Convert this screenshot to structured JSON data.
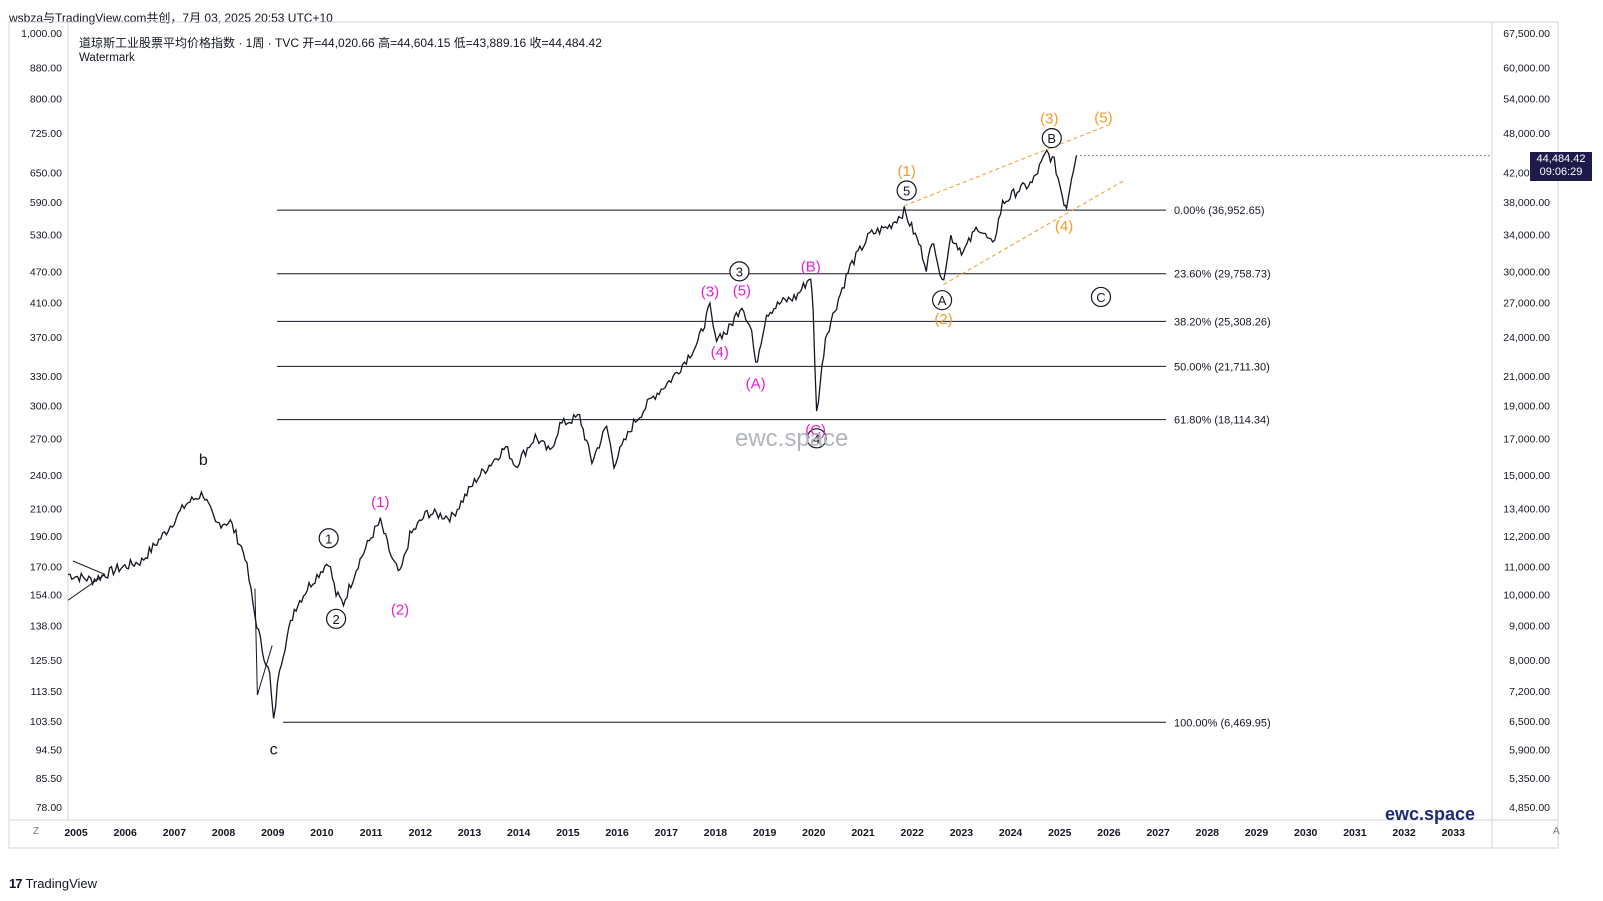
{
  "header": {
    "text": "wsbza与TradingView.com共创，7月 03, 2025 20:53 UTC+10"
  },
  "legend": {
    "title": "道琼斯工业股票平均价格指数 · 1周 · TVC   开=44,020.66   高=44,604.15   低=43,889.16   收=44,484.42",
    "watermark": "Watermark"
  },
  "price_tag": {
    "value": "44,484.42",
    "countdown": "09:06:29"
  },
  "brand": "ewc.space",
  "center_watermark": "ewc.space",
  "footer": {
    "logo": "17",
    "name": "TradingView"
  },
  "controls": {
    "left": "Z",
    "right": "A"
  },
  "colors": {
    "line": "#131722",
    "magenta": "#e91ed4",
    "orange": "#f59a23",
    "fib": "#131722",
    "axis_text": "#131722"
  },
  "chart_data": {
    "type": "line",
    "title": "道琼斯工业股票平均价格指数",
    "symbol": "TVC",
    "interval": "1周",
    "ohlc": {
      "open": 44020.66,
      "high": 44604.15,
      "low": 43889.16,
      "close": 44484.42
    },
    "scale": "log",
    "left_axis": {
      "ticks": [
        "1,000.00",
        "880.00",
        "800.00",
        "725.00",
        "650.00",
        "590.00",
        "530.00",
        "470.00",
        "410.00",
        "370.00",
        "330.00",
        "300.00",
        "270.00",
        "240.00",
        "210.00",
        "190.00",
        "170.00",
        "154.00",
        "138.00",
        "125.50",
        "113.50",
        "103.50",
        "94.50",
        "85.50",
        "78.00"
      ]
    },
    "right_axis": {
      "ticks": [
        "67,500.00",
        "60,000.00",
        "54,000.00",
        "48,000.00",
        "42,000.00",
        "38,000.00",
        "34,000.00",
        "30,000.00",
        "27,000.00",
        "24,000.00",
        "21,000.00",
        "19,000.00",
        "17,000.00",
        "15,000.00",
        "13,400.00",
        "12,200.00",
        "11,000.00",
        "10,000.00",
        "9,000.00",
        "8,000.00",
        "7,200.00",
        "6,500.00",
        "5,900.00",
        "5,350.00",
        "4,850.00"
      ],
      "values": [
        67500,
        60000,
        54000,
        48000,
        42000,
        38000,
        34000,
        30000,
        27000,
        24000,
        21000,
        19000,
        17000,
        15000,
        13400,
        12200,
        11000,
        10000,
        9000,
        8000,
        7200,
        6500,
        5900,
        5350,
        4850
      ]
    },
    "x_axis": {
      "ticks": [
        "2005",
        "2006",
        "2007",
        "2008",
        "2009",
        "2010",
        "2011",
        "2012",
        "2013",
        "2014",
        "2015",
        "2016",
        "2017",
        "2018",
        "2019",
        "2020",
        "2021",
        "2022",
        "2023",
        "2024",
        "2025",
        "2026",
        "2027",
        "2028",
        "2029",
        "2030",
        "2031",
        "2032",
        "2033"
      ],
      "years": [
        2005,
        2006,
        2007,
        2008,
        2009,
        2010,
        2011,
        2012,
        2013,
        2014,
        2015,
        2016,
        2017,
        2018,
        2019,
        2020,
        2021,
        2022,
        2023,
        2024,
        2025,
        2026,
        2027,
        2028,
        2029,
        2030,
        2031,
        2032,
        2033
      ]
    },
    "series": [
      {
        "points": [
          [
            2005.0,
            10700
          ],
          [
            2005.5,
            10500
          ],
          [
            2006.0,
            10900
          ],
          [
            2006.5,
            11200
          ],
          [
            2007.0,
            12400
          ],
          [
            2007.4,
            13600
          ],
          [
            2007.75,
            14100
          ],
          [
            2008.0,
            12700
          ],
          [
            2008.3,
            12800
          ],
          [
            2008.6,
            11400
          ],
          [
            2008.8,
            9300
          ],
          [
            2008.95,
            8300
          ],
          [
            2009.1,
            7600
          ],
          [
            2009.18,
            6470
          ],
          [
            2009.3,
            7800
          ],
          [
            2009.6,
            9500
          ],
          [
            2009.9,
            10300
          ],
          [
            2010.3,
            11200
          ],
          [
            2010.45,
            10000
          ],
          [
            2010.6,
            9700
          ],
          [
            2010.9,
            11100
          ],
          [
            2011.2,
            12300
          ],
          [
            2011.35,
            12800
          ],
          [
            2011.6,
            11200
          ],
          [
            2011.75,
            10700
          ],
          [
            2011.95,
            12200
          ],
          [
            2012.3,
            13200
          ],
          [
            2012.8,
            13000
          ],
          [
            2013.3,
            14800
          ],
          [
            2013.9,
            16500
          ],
          [
            2014.1,
            15500
          ],
          [
            2014.5,
            17100
          ],
          [
            2014.8,
            16200
          ],
          [
            2015.0,
            17800
          ],
          [
            2015.4,
            18300
          ],
          [
            2015.65,
            15700
          ],
          [
            2015.95,
            17700
          ],
          [
            2016.1,
            15600
          ],
          [
            2016.5,
            17900
          ],
          [
            2016.9,
            19600
          ],
          [
            2017.3,
            20900
          ],
          [
            2017.8,
            23500
          ],
          [
            2018.05,
            26600
          ],
          [
            2018.15,
            24000
          ],
          [
            2018.4,
            24400
          ],
          [
            2018.7,
            26800
          ],
          [
            2018.9,
            24500
          ],
          [
            2018.98,
            21700
          ],
          [
            2019.2,
            26000
          ],
          [
            2019.5,
            27000
          ],
          [
            2019.8,
            27500
          ],
          [
            2020.1,
            29500
          ],
          [
            2020.15,
            26000
          ],
          [
            2020.22,
            18500
          ],
          [
            2020.4,
            24000
          ],
          [
            2020.7,
            27800
          ],
          [
            2020.9,
            30500
          ],
          [
            2021.3,
            34000
          ],
          [
            2021.7,
            35000
          ],
          [
            2022.0,
            36800
          ],
          [
            2022.3,
            33000
          ],
          [
            2022.45,
            30500
          ],
          [
            2022.6,
            33500
          ],
          [
            2022.77,
            28700
          ],
          [
            2022.95,
            33800
          ],
          [
            2023.2,
            32000
          ],
          [
            2023.5,
            35000
          ],
          [
            2023.8,
            32700
          ],
          [
            2024.0,
            37800
          ],
          [
            2024.3,
            39500
          ],
          [
            2024.6,
            40500
          ],
          [
            2024.9,
            45000
          ],
          [
            2025.05,
            43500
          ],
          [
            2025.25,
            38000
          ],
          [
            2025.3,
            37500
          ],
          [
            2025.4,
            41500
          ],
          [
            2025.5,
            44484
          ]
        ]
      }
    ],
    "fibonacci": [
      {
        "label": "0.00% (36,952.65)",
        "value": 36952.65
      },
      {
        "label": "23.60% (29,758.73)",
        "value": 29758.73
      },
      {
        "label": "38.20% (25,308.26)",
        "value": 25308.26
      },
      {
        "label": "50.00% (21,711.30)",
        "value": 21711.3
      },
      {
        "label": "61.80% (18,114.34)",
        "value": 18114.34
      },
      {
        "label": "100.00% (6,469.95)",
        "value": 6469.95
      }
    ],
    "annotations": [
      {
        "text": "b",
        "x": 2007.75,
        "y": 15800,
        "style": "plain"
      },
      {
        "text": "c",
        "x": 2009.18,
        "y": 5900,
        "style": "plain"
      },
      {
        "text": "1",
        "x": 2010.3,
        "y": 12100,
        "style": "circle"
      },
      {
        "text": "2",
        "x": 2010.45,
        "y": 9200,
        "style": "circle"
      },
      {
        "text": "3",
        "x": 2018.65,
        "y": 30000,
        "style": "circle"
      },
      {
        "text": "4",
        "x": 2020.22,
        "y": 17000,
        "style": "circle"
      },
      {
        "text": "5",
        "x": 2022.05,
        "y": 39500,
        "style": "circle"
      },
      {
        "text": "A",
        "x": 2022.77,
        "y": 27200,
        "style": "circle"
      },
      {
        "text": "B",
        "x": 2025.0,
        "y": 47200,
        "style": "circle"
      },
      {
        "text": "C",
        "x": 2026.0,
        "y": 27500,
        "style": "circle"
      },
      {
        "text": "(1)",
        "x": 2011.35,
        "y": 13700,
        "style": "magenta"
      },
      {
        "text": "(2)",
        "x": 2011.75,
        "y": 9500,
        "style": "magenta"
      },
      {
        "text": "(3)",
        "x": 2018.05,
        "y": 28000,
        "style": "magenta"
      },
      {
        "text": "(5)",
        "x": 2018.7,
        "y": 28100,
        "style": "magenta"
      },
      {
        "text": "(4)",
        "x": 2018.25,
        "y": 22800,
        "style": "magenta"
      },
      {
        "text": "(A)",
        "x": 2018.98,
        "y": 20500,
        "style": "magenta"
      },
      {
        "text": "(B)",
        "x": 2020.1,
        "y": 30500,
        "style": "magenta"
      },
      {
        "text": "(C)",
        "x": 2020.2,
        "y": 17500,
        "style": "magenta"
      },
      {
        "text": "(1)",
        "x": 2022.05,
        "y": 42200,
        "style": "orange"
      },
      {
        "text": "(2)",
        "x": 2022.8,
        "y": 25500,
        "style": "orange"
      },
      {
        "text": "(3)",
        "x": 2024.95,
        "y": 50500,
        "style": "orange"
      },
      {
        "text": "(4)",
        "x": 2025.25,
        "y": 35000,
        "style": "orange"
      },
      {
        "text": "(5)",
        "x": 2026.05,
        "y": 50600,
        "style": "orange"
      }
    ],
    "channel_lines": [
      {
        "from": [
          2022.0,
          37500
        ],
        "to": [
          2026.2,
          49500
        ]
      },
      {
        "from": [
          2022.8,
          28700
        ],
        "to": [
          2026.5,
          41000
        ]
      }
    ],
    "triangle": [
      [
        2005.0,
        9800
      ],
      [
        2005.2,
        11100
      ],
      [
        2005.75,
        10500
      ],
      [
        2005.6,
        10000
      ]
    ],
    "crash_wedge": [
      [
        2008.8,
        10200
      ],
      [
        2008.85,
        7100
      ],
      [
        2009.15,
        8400
      ]
    ]
  }
}
